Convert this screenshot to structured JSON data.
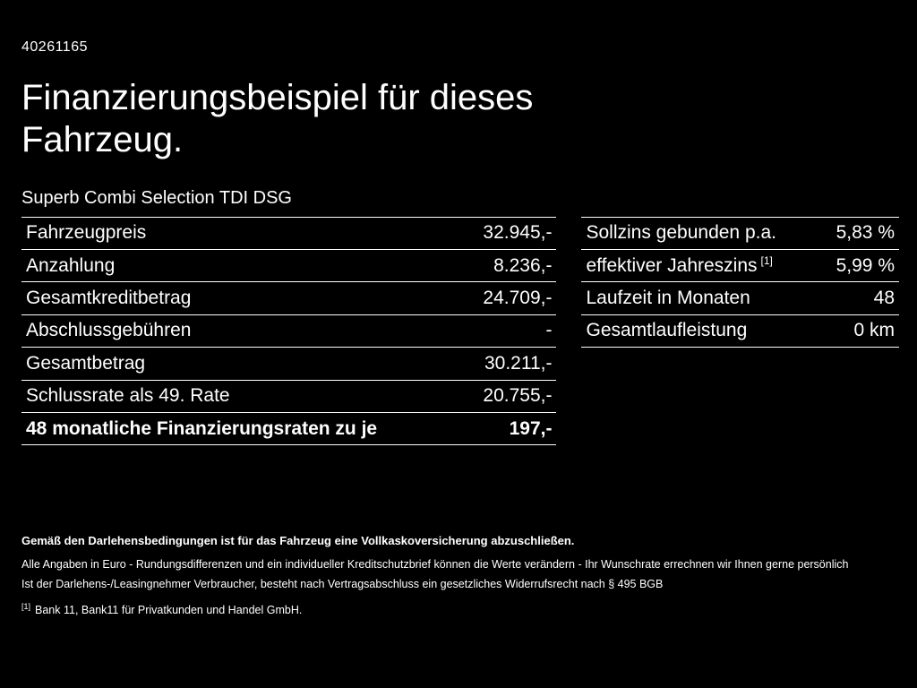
{
  "page": {
    "id_number": "40261165",
    "title": "Finanzierungsbeispiel für dieses Fahrzeug.",
    "subtitle": "Superb Combi Selection TDI DSG"
  },
  "colors": {
    "background": "#000000",
    "text": "#ffffff",
    "divider": "#ffffff"
  },
  "left_table": {
    "rows": [
      {
        "label": "Fahrzeugpreis",
        "value": "32.945,-"
      },
      {
        "label": "Anzahlung",
        "value": "8.236,-"
      },
      {
        "label": "Gesamtkreditbetrag",
        "value": "24.709,-"
      },
      {
        "label": "Abschlussgebühren",
        "value": "-"
      },
      {
        "label": "Gesamtbetrag",
        "value": "30.211,-"
      },
      {
        "label": "Schlussrate als 49. Rate",
        "value": "20.755,-"
      },
      {
        "label": "48 monatliche Finanzierungsraten zu je",
        "value": "197,-"
      }
    ]
  },
  "right_table": {
    "rows": [
      {
        "label": "Sollzins gebunden p.a.",
        "value": "5,83 %"
      },
      {
        "label": "effektiver Jahreszins",
        "footnote_ref": "[1]",
        "value": "5,99 %"
      },
      {
        "label": "Laufzeit in Monaten",
        "value": "48"
      },
      {
        "label": "Gesamtlaufleistung",
        "value": "0 km"
      }
    ]
  },
  "footer": {
    "bold_note": "Gemäß den Darlehensbedingungen ist für das Fahrzeug eine Vollkaskoversicherung abzuschließen.",
    "line1": "Alle Angaben in Euro - Rundungsdifferenzen und ein individueller Kreditschutzbrief können die Werte verändern - Ihr Wunschrate errechnen wir Ihnen gerne persönlich",
    "line2": "Ist der Darlehens-/Leasingnehmer Verbraucher, besteht nach Vertragsabschluss ein gesetzliches Widerrufsrecht nach § 495 BGB",
    "footnote_ref": "[1]",
    "footnote": "Bank 11, Bank11 für Privatkunden und Handel GmbH."
  }
}
